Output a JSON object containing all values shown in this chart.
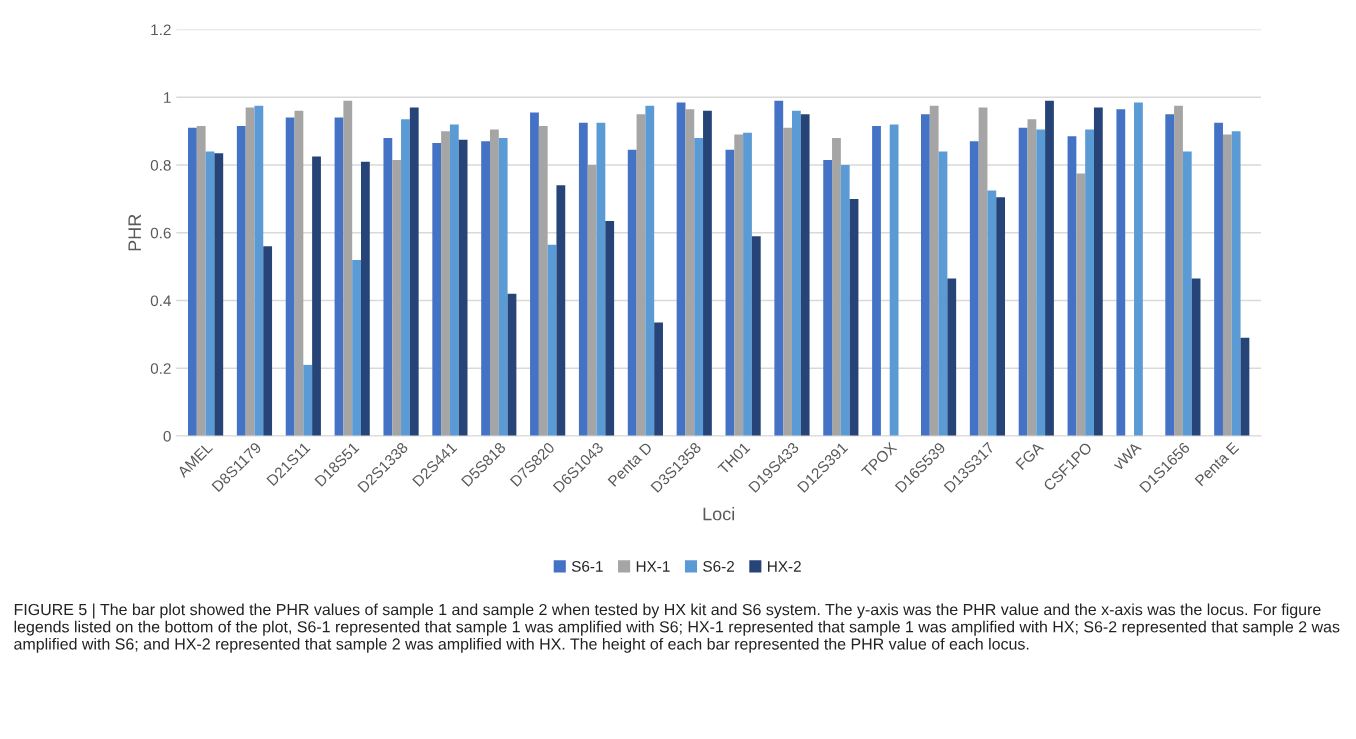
{
  "chart_data": {
    "type": "bar",
    "xlabel": "Loci",
    "ylabel": "PHR",
    "categories": [
      "AMEL",
      "D8S1179",
      "D21S11",
      "D18S51",
      "D2S1338",
      "D2S441",
      "D5S818",
      "D7S820",
      "D6S1043",
      "Penta D",
      "D3S1358",
      "TH01",
      "D19S433",
      "D12S391",
      "TPOX",
      "D16S539",
      "D13S317",
      "FGA",
      "CSF1PO",
      "vWA",
      "D1S1656",
      "Penta E"
    ],
    "series": [
      {
        "name": "S6-1",
        "color": "#4472c4",
        "values": [
          0.91,
          0.915,
          0.94,
          0.94,
          0.88,
          0.865,
          0.87,
          0.955,
          0.925,
          0.845,
          0.985,
          0.845,
          0.99,
          0.815,
          0.915,
          0.95,
          0.87,
          0.91,
          0.885,
          0.965,
          0.95,
          0.925
        ]
      },
      {
        "name": "HX-1",
        "color": "#a5a5a5",
        "values": [
          0.915,
          0.97,
          0.96,
          0.99,
          0.815,
          0.9,
          0.905,
          0.915,
          0.8,
          0.95,
          0.965,
          0.89,
          0.91,
          0.88,
          null,
          0.975,
          0.97,
          0.935,
          0.775,
          null,
          0.975,
          0.89
        ]
      },
      {
        "name": "S6-2",
        "color": "#5b9bd5",
        "values": [
          0.84,
          0.975,
          0.21,
          0.52,
          0.935,
          0.92,
          0.88,
          0.565,
          0.925,
          0.975,
          0.88,
          0.895,
          0.96,
          0.8,
          0.92,
          0.84,
          0.725,
          0.905,
          0.905,
          0.985,
          0.84,
          0.9
        ]
      },
      {
        "name": "HX-2",
        "color": "#264478",
        "values": [
          0.835,
          0.56,
          0.825,
          0.81,
          0.97,
          0.875,
          0.42,
          0.74,
          0.635,
          0.335,
          0.96,
          0.59,
          0.95,
          0.7,
          null,
          0.465,
          0.705,
          0.99,
          0.97,
          null,
          0.465,
          0.29
        ]
      }
    ],
    "ylim": [
      0,
      1.2
    ],
    "yticks": [
      0,
      0.2,
      0.4,
      0.6,
      0.8,
      1,
      1.2
    ],
    "grid": "y",
    "legend": "bottom",
    "annotations": [
      "FIGURE 5 | The bar plot showed the PHR values of sample 1 and sample 2 when tested by HX kit and S6 system. The y-axis was the PHR value and the x-axis was the locus. For figure legends listed on the bottom of the plot, S6-1 represented that sample 1 was amplified with S6; HX-1 represented that sample 1 was amplified with HX; S6-2 represented that sample 2 was amplified with S6; and HX-2 represented that sample 2 was amplified with HX. The height of each bar represented the PHR value of each locus."
    ]
  }
}
